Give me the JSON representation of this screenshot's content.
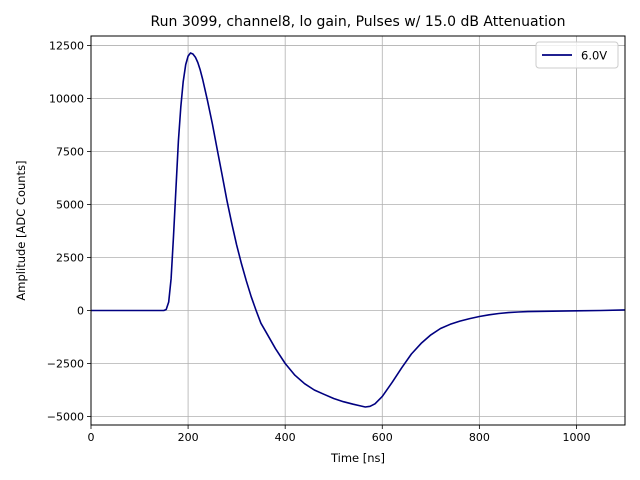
{
  "chart_data": {
    "type": "line",
    "title": "Run 3099, channel8, lo gain, Pulses w/ 15.0 dB Attenuation",
    "xlabel": "Time [ns]",
    "ylabel": "Amplitude [ADC Counts]",
    "xlim": [
      0,
      1100
    ],
    "ylim": [
      -5400,
      12950
    ],
    "xticks": [
      0,
      200,
      400,
      600,
      800,
      1000
    ],
    "yticks": [
      -5000,
      -2500,
      0,
      2500,
      5000,
      7500,
      10000,
      12500
    ],
    "xtick_labels": [
      "0",
      "200",
      "400",
      "600",
      "800",
      "1000"
    ],
    "ytick_labels": [
      "−5000",
      "−2500",
      "0",
      "2500",
      "5000",
      "7500",
      "10000",
      "12500"
    ],
    "grid": true,
    "legend_position": "top-right",
    "series": [
      {
        "name": "6.0V",
        "color": "#000080",
        "x": [
          0,
          50,
          100,
          150,
          155,
          160,
          165,
          170,
          175,
          180,
          185,
          190,
          195,
          200,
          205,
          210,
          215,
          220,
          225,
          230,
          235,
          240,
          250,
          260,
          270,
          280,
          290,
          300,
          310,
          320,
          330,
          340,
          350,
          360,
          380,
          400,
          420,
          440,
          460,
          480,
          500,
          520,
          540,
          555,
          565,
          575,
          585,
          600,
          620,
          640,
          660,
          680,
          700,
          720,
          740,
          760,
          780,
          800,
          820,
          840,
          860,
          880,
          900,
          950,
          1000,
          1050,
          1100
        ],
        "y": [
          0,
          0,
          0,
          0,
          50,
          400,
          1500,
          3500,
          5800,
          8000,
          9600,
          10800,
          11600,
          12000,
          12150,
          12100,
          11950,
          11700,
          11350,
          10900,
          10400,
          9900,
          8800,
          7600,
          6400,
          5200,
          4100,
          3100,
          2200,
          1400,
          650,
          0,
          -600,
          -1000,
          -1800,
          -2500,
          -3050,
          -3450,
          -3750,
          -3950,
          -4150,
          -4300,
          -4420,
          -4500,
          -4550,
          -4520,
          -4400,
          -4050,
          -3400,
          -2700,
          -2050,
          -1550,
          -1150,
          -850,
          -650,
          -500,
          -380,
          -280,
          -200,
          -140,
          -100,
          -70,
          -50,
          -30,
          -15,
          0,
          30
        ]
      }
    ]
  }
}
